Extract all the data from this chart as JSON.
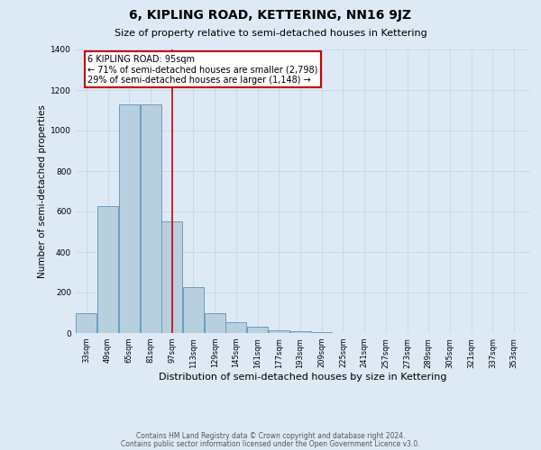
{
  "title": "6, KIPLING ROAD, KETTERING, NN16 9JZ",
  "subtitle": "Size of property relative to semi-detached houses in Kettering",
  "xlabel": "Distribution of semi-detached houses by size in Kettering",
  "ylabel": "Number of semi-detached properties",
  "footer1": "Contains HM Land Registry data © Crown copyright and database right 2024.",
  "footer2": "Contains public sector information licensed under the Open Government Licence v3.0.",
  "annotation_title": "6 KIPLING ROAD: 95sqm",
  "annotation_line1": "← 71% of semi-detached houses are smaller (2,798)",
  "annotation_line2": "29% of semi-detached houses are larger (1,148) →",
  "categories": [
    33,
    49,
    65,
    81,
    97,
    113,
    129,
    145,
    161,
    177,
    193,
    209,
    225,
    241,
    257,
    273,
    289,
    305,
    321,
    337,
    353
  ],
  "values": [
    100,
    625,
    1130,
    1130,
    550,
    225,
    100,
    55,
    30,
    15,
    10,
    5,
    0,
    0,
    0,
    0,
    0,
    0,
    0,
    0,
    0
  ],
  "bar_color": "#b8cfe0",
  "bar_edge_color": "#6e9dbf",
  "vline_color": "#cc0000",
  "vline_x": 97,
  "annotation_box_color": "#cc0000",
  "annotation_fill": "#ffffff",
  "grid_color": "#c8daea",
  "bg_color": "#ddeaf5",
  "ylim": [
    0,
    1400
  ],
  "yticks": [
    0,
    200,
    400,
    600,
    800,
    1000,
    1200,
    1400
  ],
  "title_fontsize": 10,
  "subtitle_fontsize": 8,
  "ylabel_fontsize": 7.5,
  "xlabel_fontsize": 8,
  "tick_fontsize": 6,
  "footer_fontsize": 5.5,
  "annotation_fontsize": 7
}
